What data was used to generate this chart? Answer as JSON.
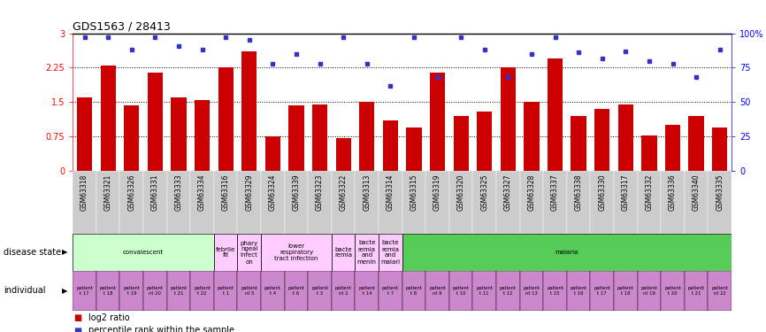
{
  "title": "GDS1563 / 28413",
  "samples": [
    "GSM63318",
    "GSM63321",
    "GSM63326",
    "GSM63331",
    "GSM63333",
    "GSM63334",
    "GSM63316",
    "GSM63329",
    "GSM63324",
    "GSM63339",
    "GSM63323",
    "GSM63322",
    "GSM63313",
    "GSM63314",
    "GSM63315",
    "GSM63319",
    "GSM63320",
    "GSM63325",
    "GSM63327",
    "GSM63328",
    "GSM63337",
    "GSM63338",
    "GSM63330",
    "GSM63317",
    "GSM63332",
    "GSM63336",
    "GSM63340",
    "GSM63335"
  ],
  "log2_ratio": [
    1.6,
    2.3,
    1.42,
    2.15,
    1.6,
    1.55,
    2.25,
    2.6,
    0.75,
    1.42,
    1.45,
    0.72,
    1.5,
    1.1,
    0.95,
    2.15,
    1.2,
    1.3,
    2.25,
    1.5,
    2.45,
    1.2,
    1.35,
    1.45,
    0.78,
    1.0,
    1.2,
    0.95
  ],
  "percentile": [
    97,
    97,
    88,
    97,
    91,
    88,
    97,
    95,
    78,
    85,
    78,
    97,
    78,
    62,
    97,
    68,
    97,
    88,
    68,
    85,
    97,
    86,
    82,
    87,
    80,
    78,
    68,
    88
  ],
  "disease_states": [
    {
      "label": "convalescent",
      "start": 0,
      "end": 5,
      "color": "#ccffcc"
    },
    {
      "label": "febrile\nfit",
      "start": 6,
      "end": 6,
      "color": "#ffccff"
    },
    {
      "label": "phary\nngeal\ninfect\non",
      "start": 7,
      "end": 7,
      "color": "#ffccff"
    },
    {
      "label": "lower\nrespiratory\ntract infection",
      "start": 8,
      "end": 10,
      "color": "#ffccff"
    },
    {
      "label": "bacte\nremia",
      "start": 11,
      "end": 11,
      "color": "#ffccff"
    },
    {
      "label": "bacte\nremia\nand\nmenin",
      "start": 12,
      "end": 12,
      "color": "#ffccff"
    },
    {
      "label": "bacte\nremia\nand\nmalari",
      "start": 13,
      "end": 13,
      "color": "#ffccff"
    },
    {
      "label": "malaria",
      "start": 14,
      "end": 27,
      "color": "#55cc55"
    }
  ],
  "individual_labels": [
    "patient\nt 17",
    "patient\nt 18",
    "patient\nt 19",
    "patient\nnt 20",
    "patient\nt 21",
    "patient\nt 22",
    "patient\nt 1",
    "patient\nnt 5",
    "patient\nt 4",
    "patient\nt 6",
    "patient\nt 3",
    "patient\nnt 2",
    "patient\nt 14",
    "patient\nt 7",
    "patient\nt 8",
    "patient\nnt 9",
    "patient\nt 10",
    "patient\nt 11",
    "patient\nt 12",
    "patient\nnt 13",
    "patient\nt 15",
    "patient\nt 16",
    "patient\nt 17",
    "patient\nt 18",
    "patient\nnt 19",
    "patient\nt 20",
    "patient\nt 21",
    "patient\nnt 22"
  ],
  "bar_color": "#cc0000",
  "dot_color": "#3333cc",
  "indiv_color": "#cc88cc",
  "yticks_left": [
    0,
    0.75,
    1.5,
    2.25,
    3
  ],
  "ytick_labels_left": [
    "0",
    "0.75",
    "1.5",
    "2.25",
    "3"
  ],
  "yticks_right": [
    0,
    25,
    50,
    75,
    100
  ],
  "ytick_labels_right": [
    "0",
    "25",
    "50",
    "75",
    "100%"
  ],
  "hlines": [
    0.75,
    1.5,
    2.25
  ],
  "legend_items": [
    {
      "color": "#cc0000",
      "label": "log2 ratio"
    },
    {
      "color": "#3333cc",
      "label": "percentile rank within the sample"
    }
  ]
}
